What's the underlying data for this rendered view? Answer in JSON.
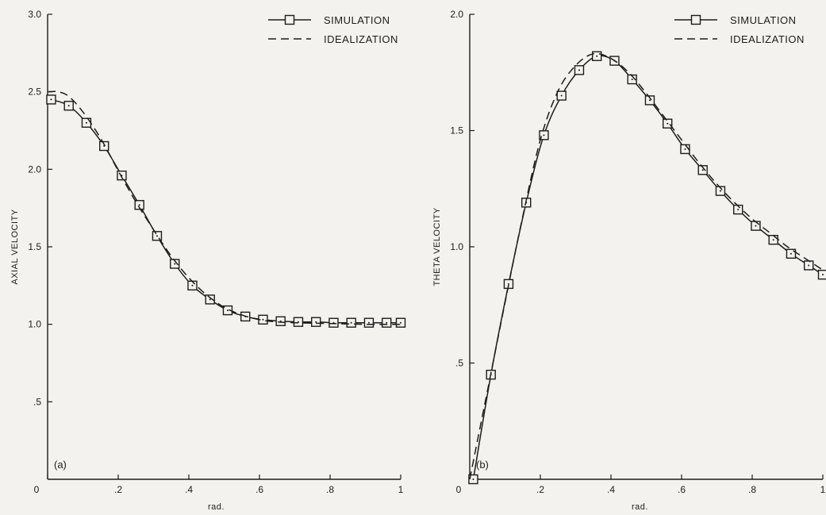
{
  "chart_data": [
    {
      "type": "line",
      "panel_label": "(a)",
      "title": "",
      "xlabel": "rad.",
      "ylabel": "AXIAL VELOCITY",
      "xlim": [
        0,
        1
      ],
      "ylim": [
        0,
        3.0
      ],
      "x_ticks": [
        {
          "value": 0,
          "label": "0"
        },
        {
          "value": 0.2,
          "label": ".2"
        },
        {
          "value": 0.4,
          "label": ".4"
        },
        {
          "value": 0.6,
          "label": ".6"
        },
        {
          "value": 0.8,
          "label": ".8"
        },
        {
          "value": 1,
          "label": "1"
        }
      ],
      "y_ticks": [
        {
          "value": 0.5,
          "label": ".5"
        },
        {
          "value": 1.0,
          "label": "1.0"
        },
        {
          "value": 1.5,
          "label": "1.5"
        },
        {
          "value": 2.0,
          "label": "2.0"
        },
        {
          "value": 2.5,
          "label": "2.5"
        },
        {
          "value": 3.0,
          "label": "3.0"
        }
      ],
      "grid": false,
      "legend_position": "top-right",
      "series": [
        {
          "name": "SIMULATION",
          "style": "solid-with-square-markers",
          "x": [
            0.01,
            0.06,
            0.11,
            0.16,
            0.21,
            0.26,
            0.31,
            0.36,
            0.41,
            0.46,
            0.51,
            0.56,
            0.61,
            0.66,
            0.71,
            0.76,
            0.81,
            0.86,
            0.91,
            0.96,
            1.0
          ],
          "y": [
            2.45,
            2.41,
            2.3,
            2.15,
            1.96,
            1.77,
            1.57,
            1.39,
            1.25,
            1.16,
            1.09,
            1.05,
            1.03,
            1.02,
            1.015,
            1.015,
            1.01,
            1.01,
            1.01,
            1.01,
            1.01
          ]
        },
        {
          "name": "IDEALIZATION",
          "style": "dashed",
          "x": [
            0.0,
            0.03,
            0.06,
            0.1,
            0.15,
            0.2,
            0.25,
            0.3,
            0.35,
            0.4,
            0.45,
            0.5,
            0.55,
            0.6,
            0.65,
            0.7,
            0.8,
            0.9,
            1.0
          ],
          "y": [
            2.5,
            2.5,
            2.47,
            2.37,
            2.2,
            1.99,
            1.79,
            1.61,
            1.44,
            1.3,
            1.19,
            1.11,
            1.06,
            1.03,
            1.015,
            1.01,
            1.005,
            1.0,
            1.0
          ]
        }
      ]
    },
    {
      "type": "line",
      "panel_label": "(b)",
      "title": "",
      "xlabel": "rad.",
      "ylabel": "THETA VELOCITY",
      "xlim": [
        0,
        1
      ],
      "ylim": [
        0,
        2.0
      ],
      "x_ticks": [
        {
          "value": 0,
          "label": "0"
        },
        {
          "value": 0.2,
          "label": ".2"
        },
        {
          "value": 0.4,
          "label": ".4"
        },
        {
          "value": 0.6,
          "label": ".6"
        },
        {
          "value": 0.8,
          "label": ".8"
        },
        {
          "value": 1,
          "label": "1"
        }
      ],
      "y_ticks": [
        {
          "value": 0.5,
          "label": ".5"
        },
        {
          "value": 1.0,
          "label": "1.0"
        },
        {
          "value": 1.5,
          "label": "1.5"
        },
        {
          "value": 2.0,
          "label": "2.0"
        }
      ],
      "grid": false,
      "legend_position": "top-right",
      "series": [
        {
          "name": "SIMULATION",
          "style": "solid-with-square-markers",
          "x": [
            0.01,
            0.06,
            0.11,
            0.16,
            0.21,
            0.26,
            0.31,
            0.36,
            0.41,
            0.46,
            0.51,
            0.56,
            0.61,
            0.66,
            0.71,
            0.76,
            0.81,
            0.86,
            0.91,
            0.96,
            1.0
          ],
          "y": [
            0.0,
            0.45,
            0.84,
            1.19,
            1.48,
            1.65,
            1.76,
            1.82,
            1.8,
            1.72,
            1.63,
            1.53,
            1.42,
            1.33,
            1.24,
            1.16,
            1.09,
            1.03,
            0.97,
            0.92,
            0.88
          ]
        },
        {
          "name": "IDEALIZATION",
          "style": "dashed",
          "x": [
            0.0,
            0.05,
            0.1,
            0.15,
            0.2,
            0.25,
            0.3,
            0.35,
            0.4,
            0.45,
            0.5,
            0.55,
            0.6,
            0.65,
            0.7,
            0.75,
            0.8,
            0.85,
            0.9,
            0.95,
            1.0
          ],
          "y": [
            0.0,
            0.38,
            0.76,
            1.13,
            1.46,
            1.67,
            1.78,
            1.83,
            1.81,
            1.75,
            1.66,
            1.56,
            1.46,
            1.36,
            1.27,
            1.19,
            1.12,
            1.06,
            1.0,
            0.95,
            0.9
          ]
        }
      ]
    }
  ]
}
